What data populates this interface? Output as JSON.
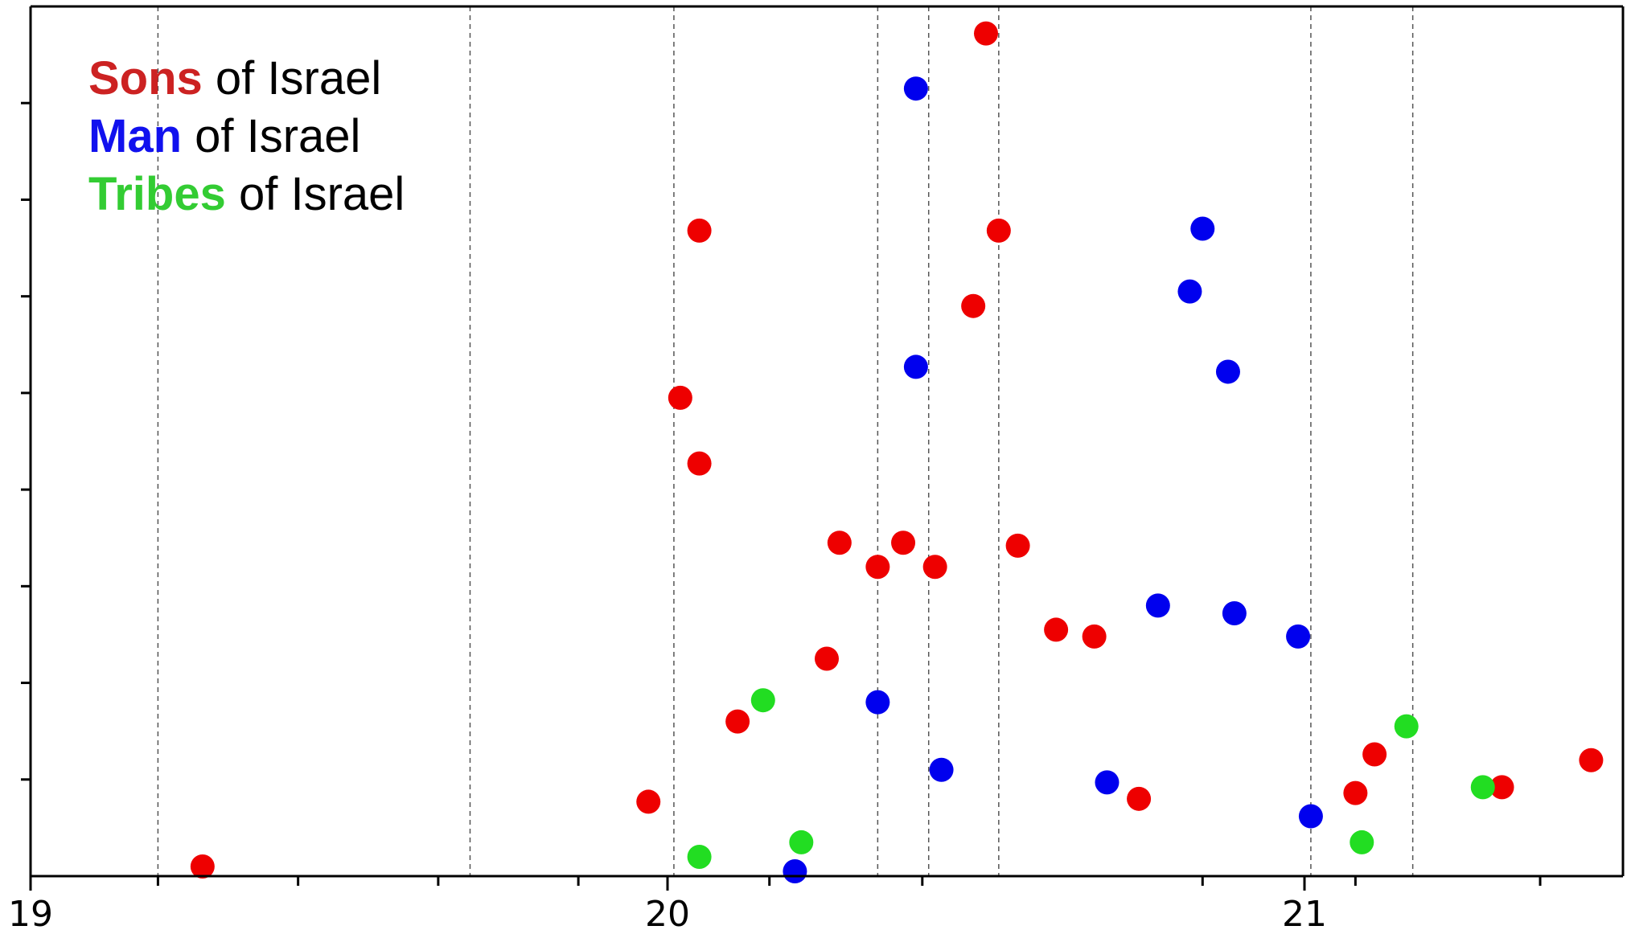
{
  "chart_data": {
    "type": "scatter",
    "title": "",
    "xlabel": "",
    "ylabel": "",
    "xlim": [
      19.0,
      21.5
    ],
    "ylim": [
      0,
      9
    ],
    "x_tick_labels": [
      "19",
      "20",
      "21"
    ],
    "x_ticks_major": [
      19,
      20,
      21
    ],
    "x_ticks_minor": [
      19.2,
      19.42,
      19.64,
      19.86,
      20.16,
      20.4,
      20.84,
      21.08,
      21.37
    ],
    "y_ticks": [
      1,
      2,
      3,
      4,
      5,
      6,
      7,
      8
    ],
    "vlines": [
      19.2,
      19.69,
      20.01,
      20.33,
      20.41,
      20.52,
      21.01,
      21.17
    ],
    "grid": false,
    "legend_position": "top-left",
    "series": [
      {
        "name": "Sons",
        "color": "#ee0000",
        "points": [
          [
            19.27,
            0.1
          ],
          [
            19.97,
            0.77
          ],
          [
            20.02,
            4.95
          ],
          [
            20.05,
            6.68
          ],
          [
            20.05,
            4.27
          ],
          [
            20.11,
            1.6
          ],
          [
            20.25,
            2.25
          ],
          [
            20.27,
            3.45
          ],
          [
            20.33,
            3.2
          ],
          [
            20.37,
            3.45
          ],
          [
            20.42,
            3.2
          ],
          [
            20.48,
            5.9
          ],
          [
            20.5,
            8.72
          ],
          [
            20.52,
            6.68
          ],
          [
            20.55,
            3.42
          ],
          [
            20.61,
            2.55
          ],
          [
            20.67,
            2.48
          ],
          [
            20.74,
            0.8
          ],
          [
            21.08,
            0.86
          ],
          [
            21.11,
            1.26
          ],
          [
            21.31,
            0.92
          ],
          [
            21.45,
            1.2
          ]
        ]
      },
      {
        "name": "Man",
        "color": "#0000ee",
        "points": [
          [
            20.2,
            0.05
          ],
          [
            20.33,
            1.8
          ],
          [
            20.39,
            8.15
          ],
          [
            20.39,
            5.27
          ],
          [
            20.43,
            1.1
          ],
          [
            20.69,
            0.97
          ],
          [
            20.77,
            2.8
          ],
          [
            20.82,
            6.05
          ],
          [
            20.84,
            6.7
          ],
          [
            20.88,
            5.22
          ],
          [
            20.89,
            2.72
          ],
          [
            20.99,
            2.48
          ],
          [
            21.01,
            0.62
          ]
        ]
      },
      {
        "name": "Tribes",
        "color": "#22dd22",
        "points": [
          [
            20.05,
            0.2
          ],
          [
            20.15,
            1.82
          ],
          [
            20.21,
            0.35
          ],
          [
            21.09,
            0.35
          ],
          [
            21.16,
            1.55
          ],
          [
            21.28,
            0.92
          ]
        ]
      }
    ]
  },
  "legend": [
    {
      "key": "Sons",
      "suffix": " of Israel",
      "color": "#cc2222"
    },
    {
      "key": "Man",
      "suffix": " of Israel",
      "color": "#1111ee"
    },
    {
      "key": "Tribes",
      "suffix": " of Israel",
      "color": "#33cc33"
    }
  ]
}
